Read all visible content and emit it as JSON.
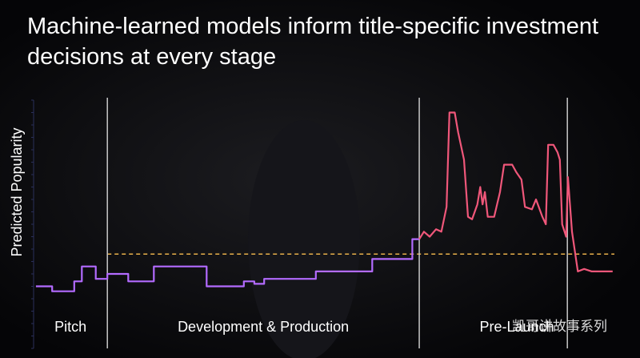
{
  "chart_data": {
    "type": "line",
    "title": "Machine-learned models inform title-specific investment decisions at every stage",
    "y_label": "Predicted Popularity",
    "xlim": [
      0,
      100
    ],
    "ylim": [
      0,
      100
    ],
    "series": [
      {
        "color": "#b36bff",
        "x": [
          0.4,
          3.2,
          3.2,
          7.0,
          7.0,
          8.3,
          8.3,
          10.7,
          10.7,
          12.7,
          12.7,
          16.3,
          16.3,
          20.7,
          20.7,
          29.8,
          29.8,
          36.2,
          36.2,
          38.0,
          38.0,
          39.7,
          39.7,
          48.6,
          48.6,
          58.3,
          58.3,
          65.2,
          65.2,
          66.4
        ],
        "values": [
          25,
          25,
          23,
          23,
          27,
          27,
          33,
          33,
          28,
          28,
          30,
          30,
          27,
          27,
          33,
          33,
          25,
          25,
          27,
          27,
          26,
          26,
          28,
          28,
          31,
          31,
          36,
          36,
          44,
          44
        ]
      },
      {
        "color": "#f0577a",
        "x": [
          66.4,
          67.2,
          68.2,
          69.3,
          70.2,
          71.1,
          71.6,
          72.5,
          73.1,
          74.1,
          74.8,
          75.5,
          76.4,
          76.9,
          77.3,
          77.7,
          78.2,
          79.3,
          80.3,
          81.0,
          82.4,
          83.1,
          84.0,
          84.6,
          85.8,
          86.5,
          87.6,
          88.2,
          88.6,
          89.5,
          90.2,
          90.6,
          91.0,
          91.7,
          92.0,
          92.7,
          93.7,
          94.8,
          96.1,
          99.7
        ],
        "values": [
          44,
          47,
          45,
          48,
          47,
          57,
          95,
          95,
          87,
          76,
          53,
          52,
          58,
          65,
          58,
          63,
          53,
          53,
          63,
          74,
          74,
          71,
          68,
          57,
          56,
          60,
          53,
          50,
          82,
          82,
          79,
          76,
          50,
          45,
          69,
          47,
          31,
          32,
          31,
          31
        ]
      }
    ],
    "threshold": 38,
    "threshold_color": "#e8b04a",
    "dividers": [
      12.7,
      66.4,
      91.9
    ],
    "stages": [
      "Pitch",
      "Development & Production",
      "Pre-Launch"
    ],
    "watermark": "凯哥讲故事系列"
  }
}
